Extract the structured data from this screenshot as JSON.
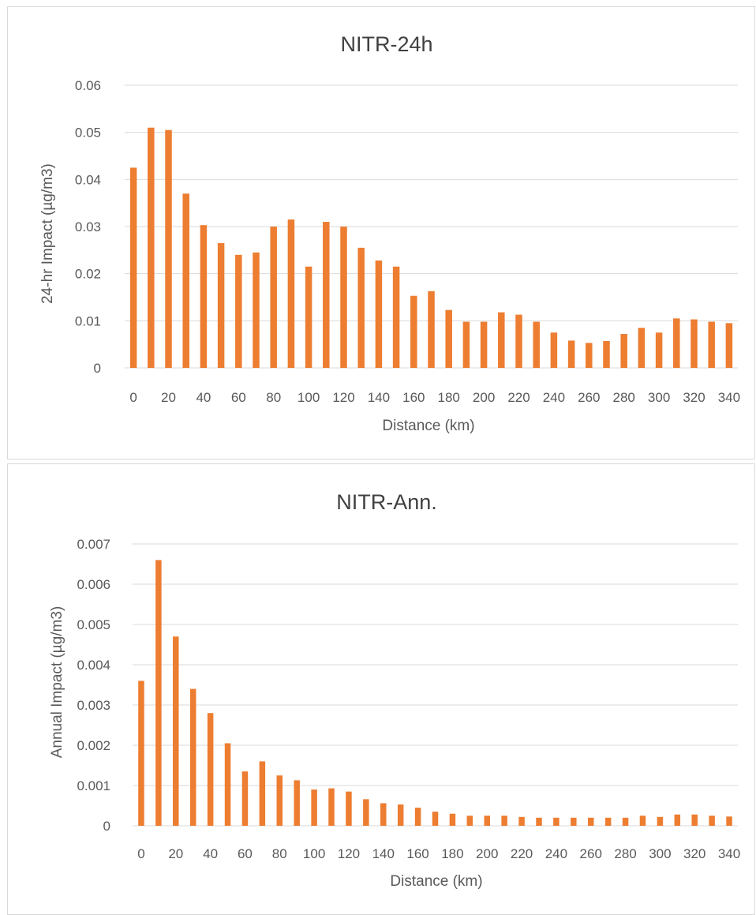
{
  "chart_data": [
    {
      "type": "bar",
      "title": "NITR-24h",
      "xlabel": "Distance (km)",
      "ylabel": "24-hr Impact (µg/m3)",
      "ylim": [
        0,
        0.06
      ],
      "yticks": [
        "0",
        "0.01",
        "0.02",
        "0.03",
        "0.04",
        "0.05",
        "0.06"
      ],
      "ytick_values": [
        0,
        0.01,
        0.02,
        0.03,
        0.04,
        0.05,
        0.06
      ],
      "xtick_labels": [
        "0",
        "20",
        "40",
        "60",
        "80",
        "100",
        "120",
        "140",
        "160",
        "180",
        "200",
        "220",
        "240",
        "260",
        "280",
        "300",
        "320",
        "340"
      ],
      "x": [
        0,
        10,
        20,
        30,
        40,
        50,
        60,
        70,
        80,
        90,
        100,
        110,
        120,
        130,
        140,
        150,
        160,
        170,
        180,
        190,
        200,
        210,
        220,
        230,
        240,
        250,
        260,
        270,
        280,
        290,
        300,
        310,
        320,
        330,
        340
      ],
      "values": [
        0.0425,
        0.051,
        0.0505,
        0.037,
        0.0303,
        0.0265,
        0.024,
        0.0245,
        0.03,
        0.0315,
        0.0215,
        0.031,
        0.03,
        0.0255,
        0.0228,
        0.0215,
        0.0153,
        0.0163,
        0.0123,
        0.0098,
        0.0098,
        0.0118,
        0.0113,
        0.0098,
        0.0075,
        0.0058,
        0.0053,
        0.0057,
        0.0072,
        0.0085,
        0.0075,
        0.0105,
        0.0103,
        0.0098,
        0.0095
      ],
      "grid": true,
      "legend": "none",
      "bar_color": "#ED7D31"
    },
    {
      "type": "bar",
      "title": "NITR-Ann.",
      "xlabel": "Distance (km)",
      "ylabel": "Annual Impact (µg/m3)",
      "ylim": [
        0,
        0.007
      ],
      "yticks": [
        "0",
        "0.001",
        "0.002",
        "0.003",
        "0.004",
        "0.005",
        "0.006",
        "0.007"
      ],
      "ytick_values": [
        0,
        0.001,
        0.002,
        0.003,
        0.004,
        0.005,
        0.006,
        0.007
      ],
      "xtick_labels": [
        "0",
        "20",
        "40",
        "60",
        "80",
        "100",
        "120",
        "140",
        "160",
        "180",
        "200",
        "220",
        "240",
        "260",
        "280",
        "300",
        "320",
        "340"
      ],
      "x": [
        0,
        10,
        20,
        30,
        40,
        50,
        60,
        70,
        80,
        90,
        100,
        110,
        120,
        130,
        140,
        150,
        160,
        170,
        180,
        190,
        200,
        210,
        220,
        230,
        240,
        250,
        260,
        270,
        280,
        290,
        300,
        310,
        320,
        330,
        340
      ],
      "values": [
        0.0036,
        0.0066,
        0.0047,
        0.0034,
        0.0028,
        0.00205,
        0.00135,
        0.0016,
        0.00125,
        0.00113,
        0.0009,
        0.00093,
        0.00085,
        0.00066,
        0.00056,
        0.00053,
        0.00045,
        0.00035,
        0.0003,
        0.00025,
        0.00025,
        0.00025,
        0.00022,
        0.0002,
        0.0002,
        0.0002,
        0.0002,
        0.0002,
        0.0002,
        0.00025,
        0.00022,
        0.00028,
        0.00028,
        0.00025,
        0.00023
      ],
      "grid": true,
      "legend": "none",
      "bar_color": "#ED7D31"
    }
  ]
}
